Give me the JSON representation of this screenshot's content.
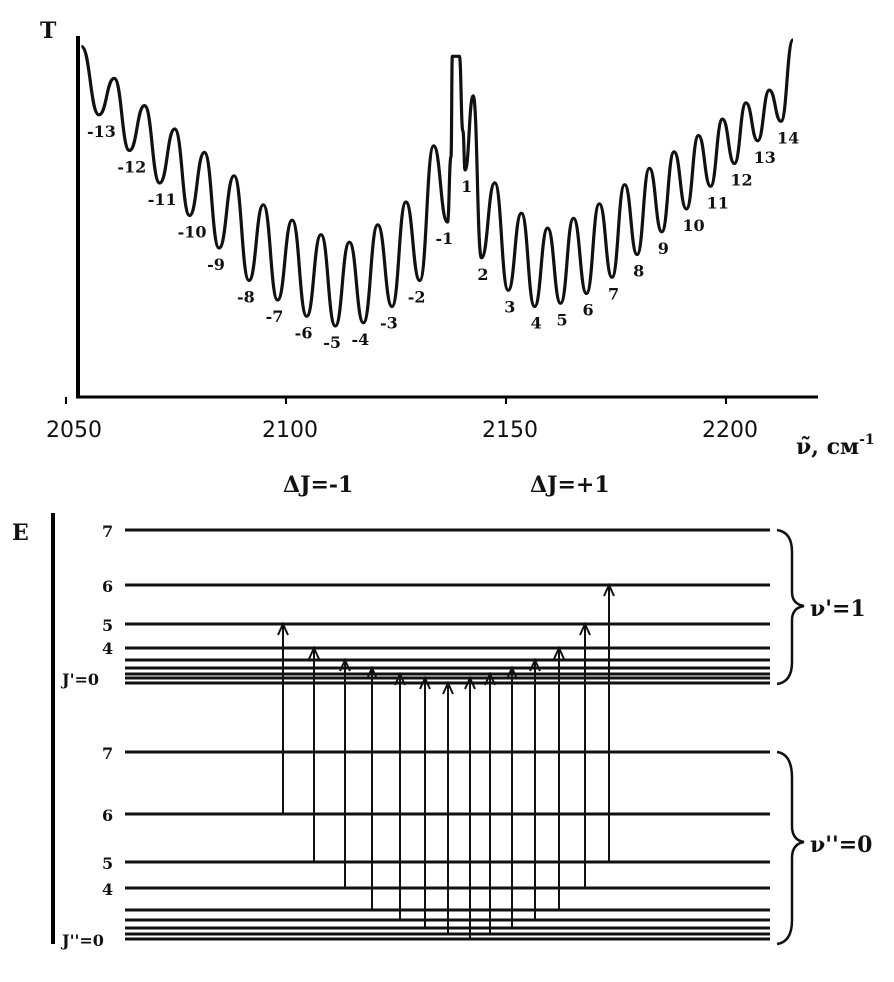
{
  "chart_data": {
    "type": "line",
    "y_axis_symbol": "T",
    "x_axis_symbol": "ν̃, см",
    "x_axis_exponent": "-1",
    "x_ticks": [
      2050,
      2100,
      2150,
      2200
    ],
    "xlim": [
      2050,
      2215
    ],
    "p_branch_labels": [
      "-13",
      "-12",
      "-11",
      "-10",
      "-9",
      "-8",
      "-7",
      "-6",
      "-5",
      "-4",
      "-3",
      "-2",
      "-1"
    ],
    "r_branch_labels": [
      "1",
      "2",
      "3",
      "4",
      "5",
      "6",
      "7",
      "8",
      "9",
      "10",
      "11",
      "12",
      "13",
      "14"
    ],
    "p_branch_minima_x": [
      2057.5,
      2064.4,
      2071.3,
      2078.1,
      2084.8,
      2091.6,
      2098.1,
      2104.7,
      2111.2,
      2117.6,
      2124.1,
      2130.4,
      2136.7
    ],
    "r_branch_minima_x": [
      2140.7,
      2144.4,
      2150.5,
      2156.5,
      2162.4,
      2168.3,
      2174.1,
      2179.8,
      2185.4,
      2191.0,
      2196.5,
      2201.9,
      2207.2,
      2212.5
    ],
    "p_branch_minima_depth": [
      0.23,
      0.34,
      0.44,
      0.54,
      0.64,
      0.74,
      0.8,
      0.85,
      0.88,
      0.87,
      0.82,
      0.74,
      0.56
    ],
    "r_branch_minima_depth": [
      0.4,
      0.67,
      0.77,
      0.82,
      0.81,
      0.78,
      0.73,
      0.66,
      0.59,
      0.52,
      0.45,
      0.38,
      0.31,
      0.25
    ]
  },
  "diagram": {
    "energy_symbol": "E",
    "delta_j_minus": "ΔJ=-1",
    "delta_j_plus": "ΔJ=+1",
    "upper_band_label": "ν'=1",
    "lower_band_label": "ν''=0",
    "upper_level_labels": [
      "7",
      "6",
      "5",
      "4",
      "J'=0"
    ],
    "lower_level_labels": [
      "7",
      "6",
      "5",
      "4",
      "J''=0"
    ]
  }
}
